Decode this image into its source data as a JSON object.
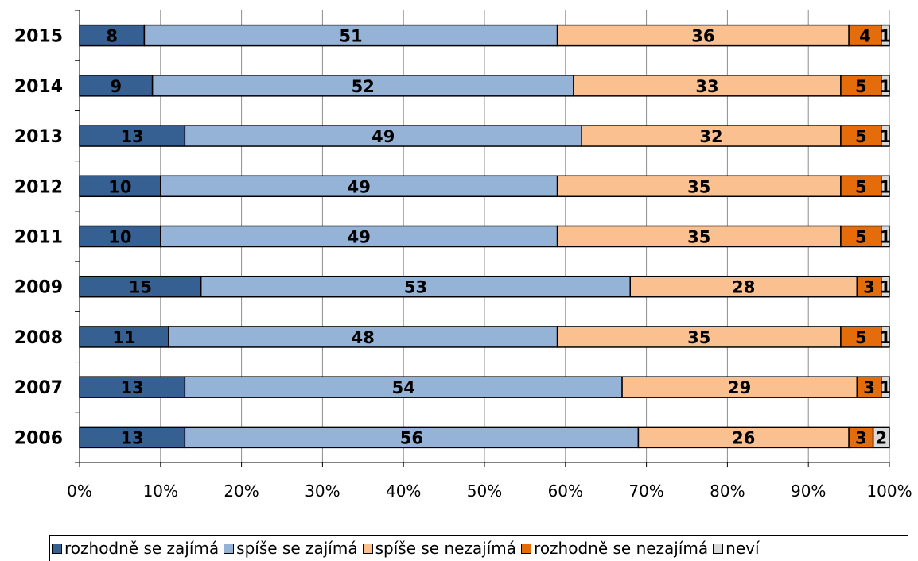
{
  "chart_data": {
    "type": "bar",
    "orientation": "horizontal",
    "stacked": "percent",
    "categories": [
      "2015",
      "2014",
      "2013",
      "2012",
      "2011",
      "2009",
      "2008",
      "2007",
      "2006"
    ],
    "series": [
      {
        "name": "rozhodně se zajímá",
        "color": "#376092",
        "values": [
          8,
          9,
          13,
          10,
          10,
          15,
          11,
          13,
          13
        ]
      },
      {
        "name": "spíše se zajímá",
        "color": "#95B3D7",
        "values": [
          51,
          52,
          49,
          49,
          49,
          53,
          48,
          54,
          56
        ]
      },
      {
        "name": "spíše se nezajímá",
        "color": "#FAC090",
        "values": [
          36,
          33,
          32,
          35,
          35,
          28,
          35,
          29,
          26
        ]
      },
      {
        "name": "rozhodně se nezajímá",
        "color": "#E46C0A",
        "values": [
          4,
          5,
          5,
          5,
          5,
          3,
          5,
          3,
          3
        ]
      },
      {
        "name": "neví",
        "color": "#D9D9D9",
        "values": [
          1,
          1,
          1,
          1,
          1,
          1,
          1,
          1,
          2
        ]
      }
    ],
    "x_ticks": [
      "0%",
      "10%",
      "20%",
      "30%",
      "40%",
      "50%",
      "60%",
      "70%",
      "80%",
      "90%",
      "100%"
    ],
    "xlim": [
      0,
      100
    ],
    "data_labels": true,
    "grid": "vertical",
    "legend_position": "bottom"
  }
}
